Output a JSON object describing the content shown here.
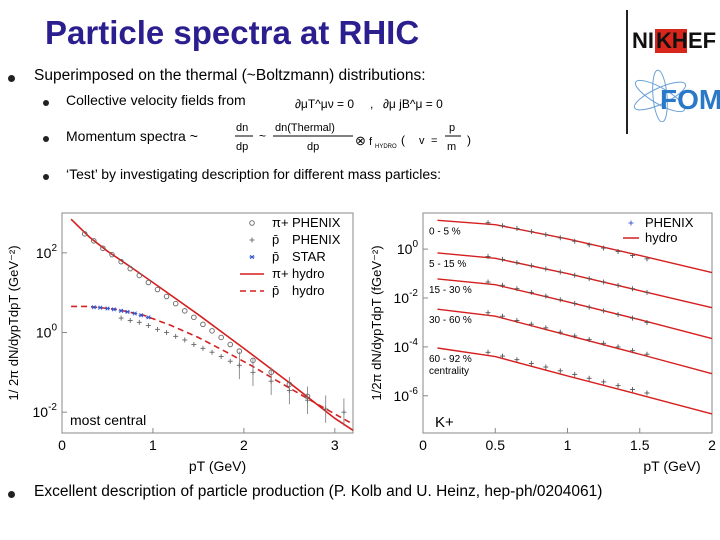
{
  "slide": {
    "title": "Particle spectra at RHIC",
    "bullet_main": "Superimposed on the thermal (~Boltzmann) distributions:",
    "sub_bullets": [
      "Collective velocity fields from",
      "Momentum spectra ~",
      "‘Test’ by investigating description for different mass particles:"
    ],
    "bullet_last": "Excellent description of particle production (P. Kolb and U. Heinz, hep-ph/0204061)"
  },
  "logos": {
    "nikhef": {
      "text_part1": "NI",
      "text_highlight": "KH",
      "text_part2": "EF",
      "highlight_color": "#d8261c"
    },
    "fom": {
      "text": "FOM",
      "color": "#2a78c8"
    }
  },
  "equations": {
    "conservation_1": "∂μT^μν = 0",
    "separator": ",",
    "conservation_2": "∂μ jB^μ = 0",
    "momentum_lhs_num": "dn",
    "momentum_lhs_den": "dp",
    "momentum_tilde": "~",
    "momentum_rhs_num": "dn(Thermal)",
    "momentum_rhs_den": "dp",
    "momentum_otimes": "⊗",
    "momentum_f": "f",
    "momentum_f_sub": "HYDRO",
    "momentum_v": "v",
    "momentum_eq": "=",
    "momentum_p": "p",
    "momentum_m": "m"
  },
  "chart_data": [
    {
      "type": "scatter",
      "ylog": true,
      "xlabel": "pT (GeV)",
      "ylabel": "1/ 2π dN/dypTdpT (GeV⁻²)",
      "xlim": [
        0,
        3.2
      ],
      "ylim": [
        0.003,
        1000
      ],
      "x_ticks": [
        "0",
        "1",
        "2",
        "3"
      ],
      "y_ticks": [
        "10^2",
        "10^0",
        "10^-2"
      ],
      "annotation": "most central",
      "legend": [
        {
          "marker": "circle-open",
          "particle": "π+",
          "label": "PHENIX"
        },
        {
          "marker": "plus",
          "particle": "p̄",
          "label": "PHENIX"
        },
        {
          "marker": "star",
          "particle": "p̄",
          "label": "STAR"
        },
        {
          "style": "solid",
          "particle": "π+",
          "label": "hydro"
        },
        {
          "style": "dashed",
          "particle": "p̄",
          "label": "hydro"
        }
      ],
      "series": [
        {
          "name": "π+ PHENIX",
          "marker": "circle-open",
          "x": [
            0.25,
            0.35,
            0.45,
            0.55,
            0.65,
            0.75,
            0.85,
            0.95,
            1.05,
            1.15,
            1.25,
            1.35,
            1.45,
            1.55,
            1.65,
            1.75,
            1.85,
            1.95,
            2.1,
            2.3,
            2.5,
            2.7
          ],
          "y": [
            300,
            200,
            130,
            90,
            60,
            40,
            27,
            18,
            12,
            8,
            5.3,
            3.5,
            2.4,
            1.6,
            1.1,
            0.75,
            0.5,
            0.34,
            0.2,
            0.1,
            0.05,
            0.025
          ]
        },
        {
          "name": "p̄ PHENIX",
          "marker": "plus",
          "x": [
            0.65,
            0.75,
            0.85,
            0.95,
            1.05,
            1.15,
            1.25,
            1.35,
            1.45,
            1.55,
            1.65,
            1.75,
            1.85,
            1.95,
            2.1,
            2.3,
            2.5,
            2.7,
            2.9,
            3.1
          ],
          "y": [
            2.3,
            2.0,
            1.8,
            1.5,
            1.2,
            1.0,
            0.8,
            0.65,
            0.5,
            0.4,
            0.32,
            0.25,
            0.19,
            0.15,
            0.1,
            0.06,
            0.035,
            0.02,
            0.012,
            0.01
          ]
        },
        {
          "name": "p̄ STAR",
          "marker": "star",
          "x": [
            0.35,
            0.42,
            0.5,
            0.57,
            0.65,
            0.72,
            0.8,
            0.87,
            0.95
          ],
          "y": [
            4.3,
            4.2,
            4.0,
            3.8,
            3.5,
            3.3,
            3.0,
            2.7,
            2.4
          ]
        },
        {
          "name": "π+ hydro",
          "style": "solid",
          "x": [
            0.1,
            0.3,
            0.5,
            0.75,
            1.0,
            1.5,
            2.0,
            2.5,
            3.0,
            3.2
          ],
          "y": [
            700,
            250,
            110,
            45,
            18,
            2.8,
            0.4,
            0.055,
            0.007,
            0.0035
          ]
        },
        {
          "name": "p̄ hydro",
          "style": "dashed",
          "x": [
            0.1,
            0.3,
            0.6,
            0.9,
            1.2,
            1.5,
            1.8,
            2.1,
            2.4,
            2.7,
            3.0,
            3.2
          ],
          "y": [
            4.5,
            4.5,
            3.8,
            2.7,
            1.5,
            0.75,
            0.33,
            0.14,
            0.055,
            0.022,
            0.009,
            0.005
          ]
        }
      ]
    },
    {
      "type": "line",
      "ylog": true,
      "xlabel": "pT (GeV)",
      "ylabel": "1/2π dN/dypTdpT (fGeV⁻²)",
      "xlim": [
        0,
        2
      ],
      "ylim": [
        3e-08,
        30
      ],
      "x_ticks": [
        "0",
        "0.5",
        "1",
        "1.5",
        "2"
      ],
      "y_ticks": [
        "10^0",
        "10^-2",
        "10^-4",
        "10^-6"
      ],
      "particle_label": "K+",
      "legend": [
        {
          "marker": "plus",
          "label": "PHENIX"
        },
        {
          "style": "solid",
          "label": "hydro"
        }
      ],
      "centrality_labels": [
        "0 - 5 %",
        "5 - 15 %",
        "15 - 30 %",
        "30 - 60 %",
        "60 - 92 %",
        "centrality"
      ],
      "series": [
        {
          "name": "0 - 5 %",
          "x": [
            0.45,
            0.55,
            0.65,
            0.75,
            0.85,
            0.95,
            1.05,
            1.15,
            1.25,
            1.35,
            1.45,
            1.55
          ],
          "y": [
            12,
            9,
            7,
            5.2,
            3.9,
            2.9,
            2.1,
            1.5,
            1.1,
            0.8,
            0.55,
            0.4
          ],
          "hydro_x": [
            0.1,
            0.5,
            1.0,
            1.5,
            2.0
          ],
          "hydro_y": [
            15,
            10,
            2.6,
            0.55,
            0.11
          ]
        },
        {
          "name": "5 - 15 %",
          "x": [
            0.45,
            0.55,
            0.65,
            0.75,
            0.85,
            0.95,
            1.05,
            1.15,
            1.25,
            1.35,
            1.45,
            1.55
          ],
          "y": [
            0.5,
            0.38,
            0.28,
            0.21,
            0.155,
            0.115,
            0.085,
            0.062,
            0.045,
            0.033,
            0.024,
            0.017
          ],
          "hydro_x": [
            0.1,
            0.5,
            1.0,
            1.5,
            2.0
          ],
          "hydro_y": [
            0.7,
            0.42,
            0.1,
            0.02,
            0.004
          ]
        },
        {
          "name": "15 - 30 %",
          "x": [
            0.45,
            0.55,
            0.65,
            0.75,
            0.85,
            0.95,
            1.05,
            1.15,
            1.25,
            1.35,
            1.45,
            1.55
          ],
          "y": [
            0.045,
            0.033,
            0.024,
            0.017,
            0.012,
            0.0085,
            0.006,
            0.0042,
            0.003,
            0.0021,
            0.0015,
            0.001
          ],
          "hydro_x": [
            0.1,
            0.5,
            1.0,
            1.5,
            2.0
          ],
          "hydro_y": [
            0.06,
            0.035,
            0.007,
            0.0013,
            0.00022
          ]
        },
        {
          "name": "30 - 60 %",
          "x": [
            0.45,
            0.55,
            0.65,
            0.75,
            0.85,
            0.95,
            1.05,
            1.15,
            1.25,
            1.35,
            1.45,
            1.55
          ],
          "y": [
            0.0025,
            0.0018,
            0.0012,
            0.00085,
            0.0006,
            0.0004,
            0.00028,
            0.0002,
            0.00014,
            0.0001,
            7e-05,
            5e-05
          ],
          "hydro_x": [
            0.1,
            0.5,
            1.0,
            1.5,
            2.0
          ],
          "hydro_y": [
            0.0035,
            0.0018,
            0.0003,
            5e-05,
            8e-06
          ]
        },
        {
          "name": "60 - 92 %",
          "x": [
            0.45,
            0.55,
            0.65,
            0.75,
            0.85,
            0.95,
            1.05,
            1.15,
            1.25,
            1.35,
            1.45,
            1.55
          ],
          "y": [
            6e-05,
            4.2e-05,
            3e-05,
            2.1e-05,
            1.5e-05,
            1.05e-05,
            7.5e-06,
            5.2e-06,
            3.7e-06,
            2.6e-06,
            1.8e-06,
            1.3e-06
          ],
          "hydro_x": [
            0.1,
            0.5,
            1.0,
            1.5,
            2.0
          ],
          "hydro_y": [
            9e-05,
            4e-05,
            6.5e-06,
            1.1e-06,
            1.8e-07
          ]
        }
      ]
    }
  ]
}
